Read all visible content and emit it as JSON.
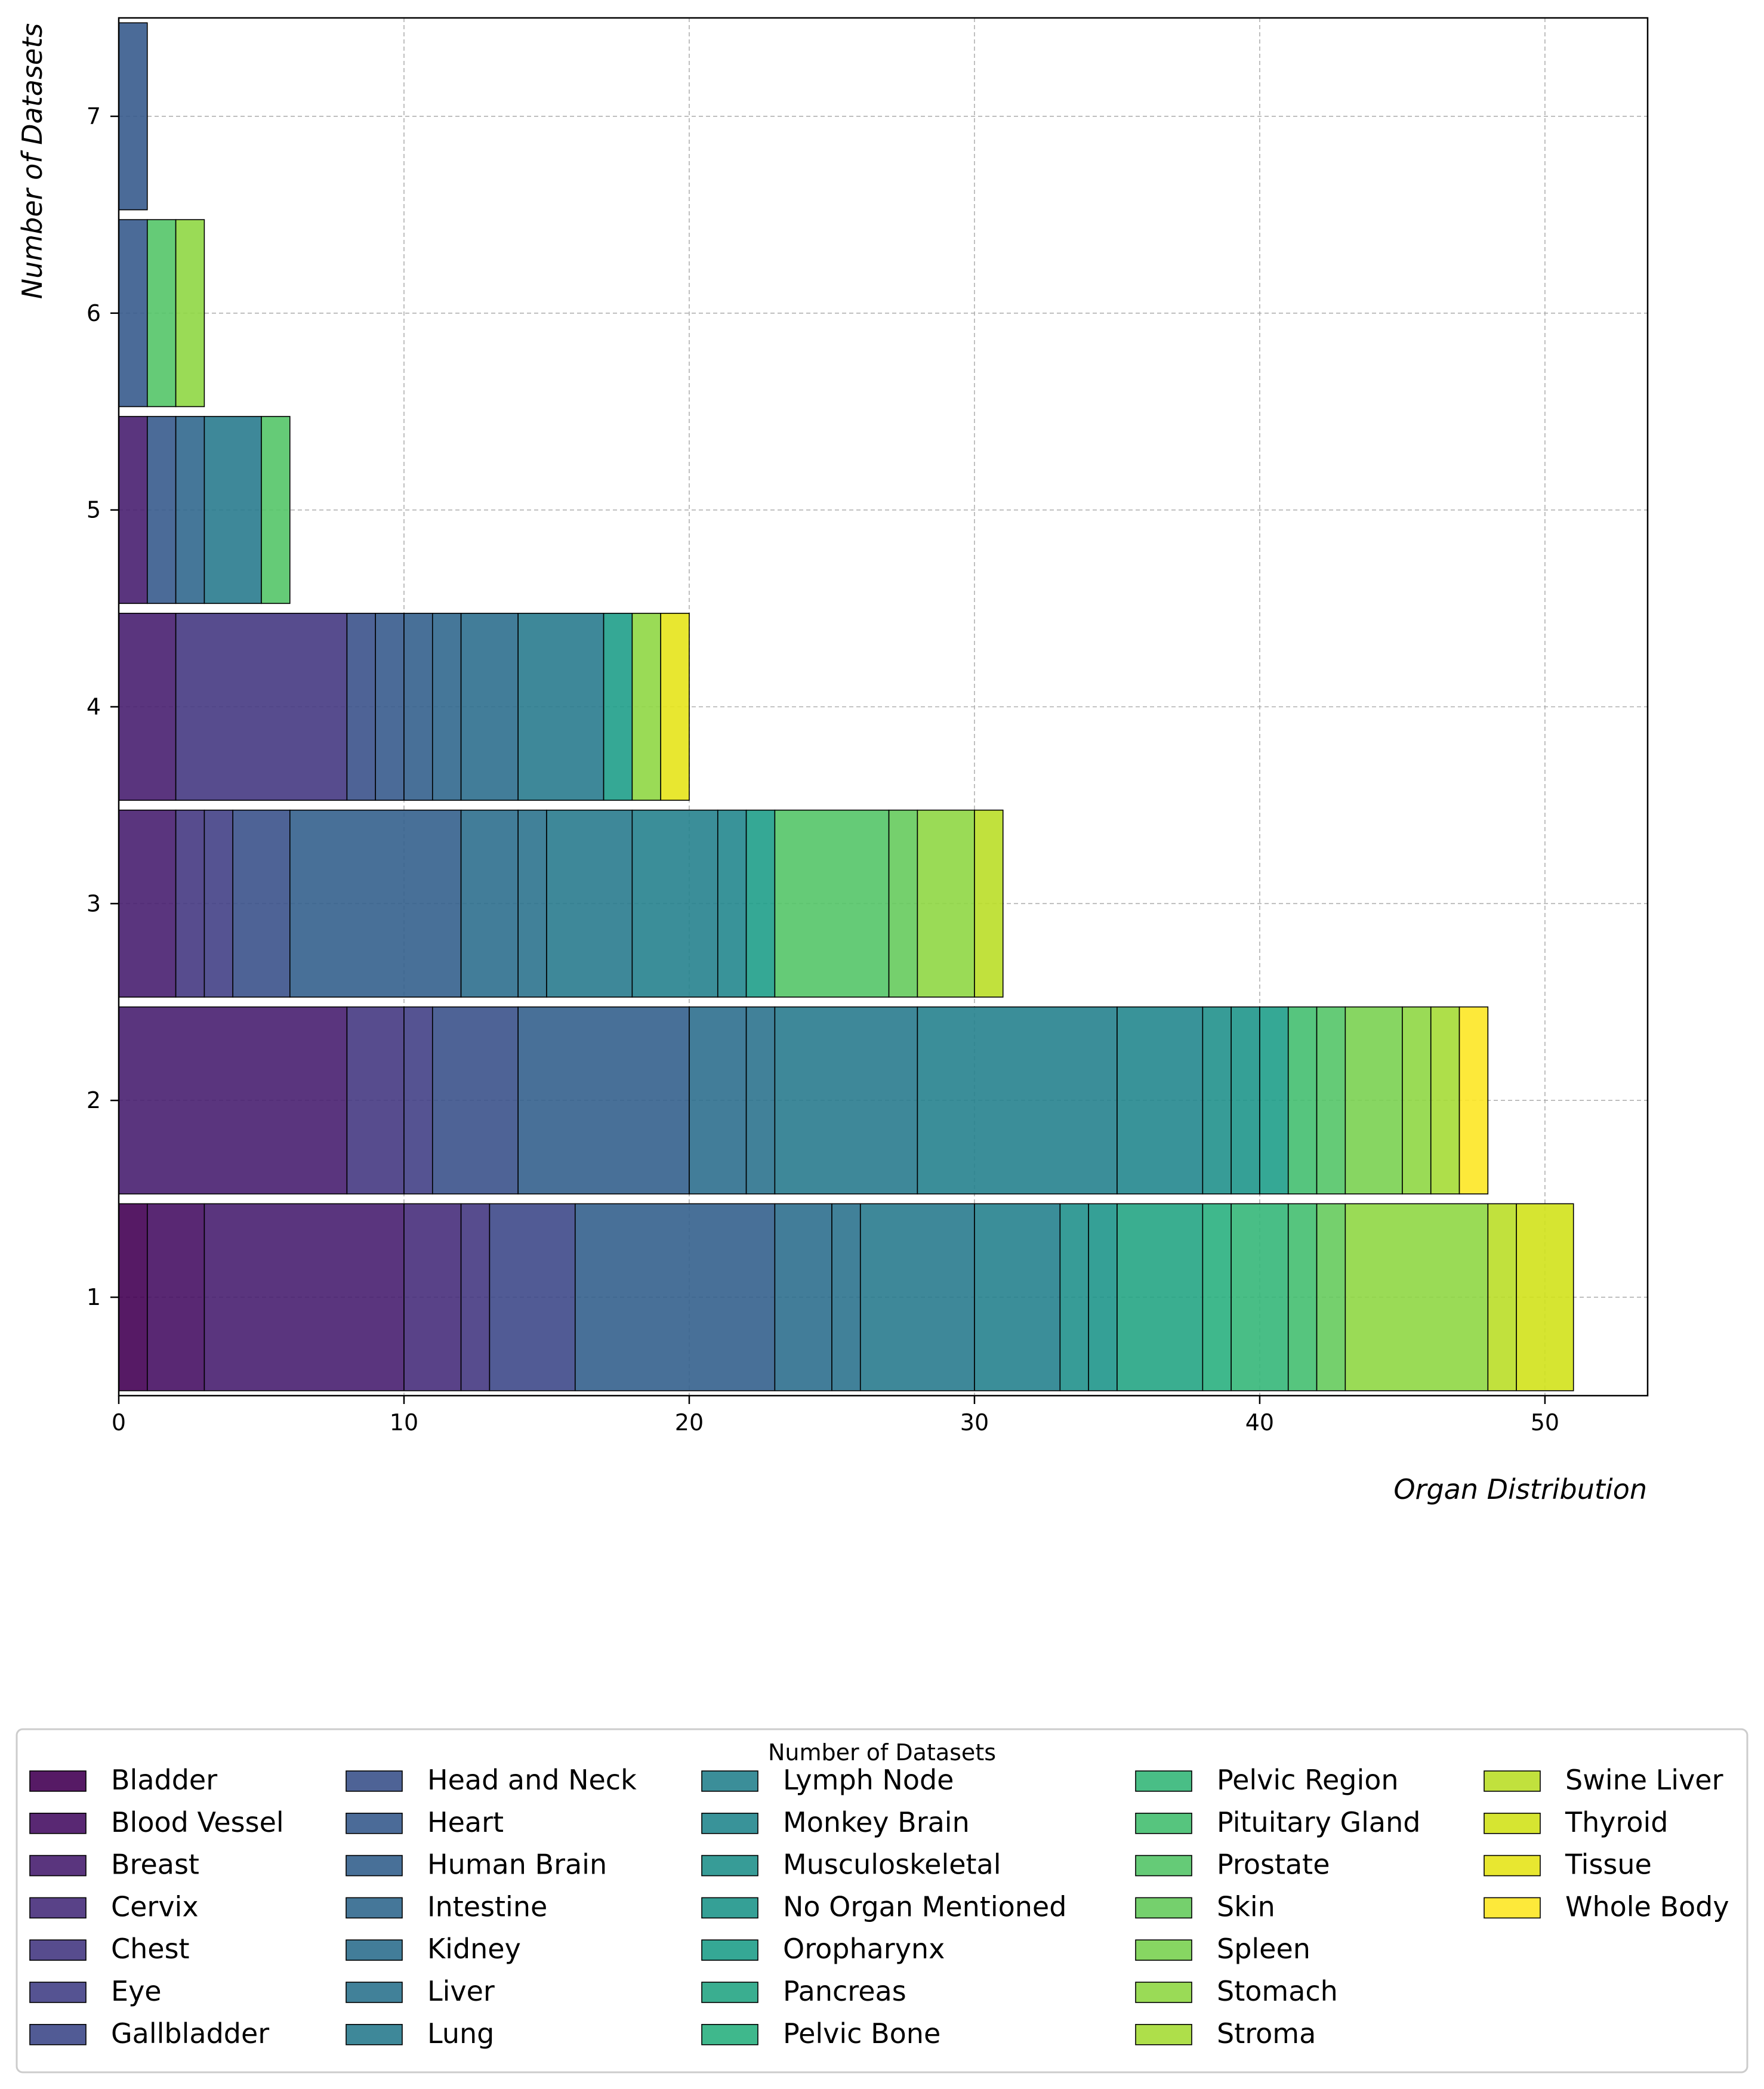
{
  "chart_data": {
    "type": "bar",
    "orientation": "horizontal-stacked",
    "title": "",
    "xlabel": "Organ Distribution",
    "ylabel": "Number of Datasets",
    "xlim": [
      0,
      53.6
    ],
    "ylim": [
      0.5,
      7.5
    ],
    "x_ticks": [
      0,
      10,
      20,
      30,
      40,
      50
    ],
    "y_ticks": [
      1,
      2,
      3,
      4,
      5,
      6,
      7
    ],
    "grid": true,
    "legend_position": "bottom",
    "legend_title": "Number of Datasets",
    "categories": [
      1,
      2,
      3,
      4,
      5,
      6,
      7
    ],
    "series": [
      {
        "name": "Bladder",
        "color": "#440154",
        "values": [
          1,
          0,
          0,
          0,
          0,
          0,
          0
        ]
      },
      {
        "name": "Blood Vessel",
        "color": "#471164",
        "values": [
          2,
          0,
          0,
          0,
          0,
          0,
          0
        ]
      },
      {
        "name": "Breast",
        "color": "#481f70",
        "values": [
          7,
          8,
          2,
          2,
          1,
          0,
          0
        ]
      },
      {
        "name": "Cervix",
        "color": "#472d7b",
        "values": [
          2,
          0,
          0,
          0,
          0,
          0,
          0
        ]
      },
      {
        "name": "Chest",
        "color": "#453882",
        "values": [
          1,
          2,
          1,
          6,
          0,
          0,
          0
        ]
      },
      {
        "name": "Eye",
        "color": "#424086",
        "values": [
          0,
          1,
          1,
          0,
          0,
          0,
          0
        ]
      },
      {
        "name": "Gallbladder",
        "color": "#3e4989",
        "values": [
          3,
          0,
          0,
          0,
          0,
          0,
          0
        ]
      },
      {
        "name": "Head and Neck",
        "color": "#3b528b",
        "values": [
          0,
          3,
          2,
          1,
          0,
          0,
          0
        ]
      },
      {
        "name": "Heart",
        "color": "#375b8d",
        "values": [
          0,
          0,
          0,
          1,
          1,
          1,
          1
        ]
      },
      {
        "name": "Human Brain",
        "color": "#34618d",
        "values": [
          7,
          6,
          6,
          1,
          0,
          0,
          0
        ]
      },
      {
        "name": "Intestine",
        "color": "#31688e",
        "values": [
          0,
          0,
          0,
          1,
          1,
          0,
          0
        ]
      },
      {
        "name": "Kidney",
        "color": "#2e6f8e",
        "values": [
          2,
          2,
          2,
          2,
          0,
          0,
          0
        ]
      },
      {
        "name": "Liver",
        "color": "#2c738e",
        "values": [
          1,
          1,
          1,
          0,
          0,
          0,
          0
        ]
      },
      {
        "name": "Lung",
        "color": "#297b8e",
        "values": [
          4,
          5,
          3,
          3,
          2,
          0,
          0
        ]
      },
      {
        "name": "Lymph Node",
        "color": "#26828e",
        "values": [
          3,
          7,
          3,
          0,
          0,
          0,
          0
        ]
      },
      {
        "name": "Monkey Brain",
        "color": "#24878e",
        "values": [
          0,
          3,
          1,
          0,
          0,
          0,
          0
        ]
      },
      {
        "name": "Musculoskeletal",
        "color": "#21918c",
        "values": [
          1,
          1,
          0,
          0,
          0,
          0,
          0
        ]
      },
      {
        "name": "No Organ Mentioned",
        "color": "#1f968b",
        "values": [
          1,
          1,
          0,
          0,
          0,
          0,
          0
        ]
      },
      {
        "name": "Oropharynx",
        "color": "#1f9e89",
        "values": [
          0,
          1,
          1,
          1,
          0,
          0,
          0
        ]
      },
      {
        "name": "Pancreas",
        "color": "#25a584",
        "values": [
          3,
          0,
          0,
          0,
          0,
          0,
          0
        ]
      },
      {
        "name": "Pelvic Bone",
        "color": "#2ab07f",
        "values": [
          1,
          0,
          0,
          0,
          0,
          0,
          0
        ]
      },
      {
        "name": "Pelvic Region",
        "color": "#35b779",
        "values": [
          2,
          0,
          0,
          0,
          0,
          0,
          0
        ]
      },
      {
        "name": "Pituitary Gland",
        "color": "#44bf70",
        "values": [
          1,
          1,
          0,
          0,
          0,
          0,
          0
        ]
      },
      {
        "name": "Prostate",
        "color": "#54c568",
        "values": [
          0,
          1,
          4,
          0,
          1,
          1,
          0
        ]
      },
      {
        "name": "Skin",
        "color": "#66cb5d",
        "values": [
          1,
          0,
          1,
          0,
          0,
          0,
          0
        ]
      },
      {
        "name": "Spleen",
        "color": "#7ad151",
        "values": [
          0,
          2,
          0,
          0,
          0,
          0,
          0
        ]
      },
      {
        "name": "Stomach",
        "color": "#8fd744",
        "values": [
          5,
          1,
          2,
          1,
          0,
          1,
          0
        ]
      },
      {
        "name": "Stroma",
        "color": "#a5db36",
        "values": [
          0,
          1,
          0,
          0,
          0,
          0,
          0
        ]
      },
      {
        "name": "Swine Liver",
        "color": "#bade28",
        "values": [
          1,
          0,
          1,
          0,
          0,
          0,
          0
        ]
      },
      {
        "name": "Thyroid",
        "color": "#d2e21b",
        "values": [
          2,
          0,
          0,
          0,
          0,
          0,
          0
        ]
      },
      {
        "name": "Tissue",
        "color": "#e5e419",
        "values": [
          0,
          0,
          0,
          1,
          0,
          0,
          0
        ]
      },
      {
        "name": "Whole Body",
        "color": "#fde725",
        "values": [
          0,
          1,
          0,
          0,
          0,
          0,
          0
        ]
      }
    ]
  }
}
